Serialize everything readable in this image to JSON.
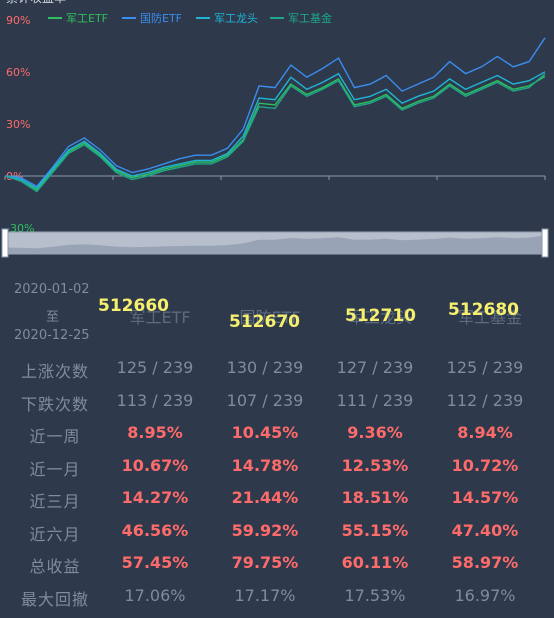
{
  "chart_title": "累计收益率",
  "legend": [
    {
      "name": "军工ETF",
      "color": "#2fbf5e"
    },
    {
      "name": "国防ETF",
      "color": "#3b8cf0"
    },
    {
      "name": "军工龙头",
      "color": "#1fb3d6"
    },
    {
      "name": "军工基金",
      "color": "#1ea58a"
    }
  ],
  "chart_data": {
    "type": "line",
    "x_range": [
      "2020-01-02",
      "2020-12-25"
    ],
    "ylim": [
      -30,
      90
    ],
    "yticks": [
      "90%",
      "60%",
      "30%",
      "0%",
      "-30%"
    ],
    "series": [
      {
        "name": "军工ETF",
        "values": [
          0,
          -2,
          -8,
          3,
          14,
          19,
          12,
          3,
          -1,
          1,
          4,
          6,
          8,
          8,
          12,
          21,
          42,
          41,
          53,
          47,
          51,
          56,
          41,
          43,
          47,
          39,
          43,
          46,
          53,
          47,
          51,
          55,
          50,
          52,
          57.45
        ]
      },
      {
        "name": "国防ETF",
        "values": [
          0,
          -1,
          -6,
          5,
          17,
          22,
          15,
          6,
          2,
          4,
          7,
          10,
          12,
          12,
          16,
          27,
          52,
          51,
          64,
          57,
          62,
          68,
          51,
          53,
          58,
          49,
          53,
          57,
          66,
          59,
          63,
          69,
          63,
          66,
          79.75
        ]
      },
      {
        "name": "军工龙头",
        "values": [
          0,
          -2,
          -7,
          4,
          15,
          20,
          13,
          4,
          0,
          2,
          5,
          7,
          9,
          9,
          13,
          23,
          45,
          44,
          57,
          50,
          54,
          59,
          44,
          46,
          50,
          42,
          46,
          49,
          56,
          50,
          54,
          58,
          53,
          55,
          60.11
        ]
      },
      {
        "name": "军工基金",
        "values": [
          0,
          -3,
          -9,
          2,
          13,
          18,
          11,
          2,
          -2,
          0,
          3,
          5,
          7,
          7,
          11,
          20,
          40,
          39,
          52,
          46,
          50,
          55,
          40,
          42,
          46,
          38,
          42,
          45,
          52,
          46,
          50,
          54,
          49,
          51,
          58.97
        ]
      }
    ]
  },
  "stats": {
    "date_start": "2020-01-02",
    "date_to": "至",
    "date_end": "2020-12-25",
    "funds": [
      {
        "code": "512660",
        "name": "军工ETF"
      },
      {
        "code": "512670",
        "name": "国防ETF"
      },
      {
        "code": "512710",
        "name": "军工龙头"
      },
      {
        "code": "512680",
        "name": "军工基金"
      }
    ],
    "rows": [
      {
        "label": "上涨次数",
        "kind": "plain",
        "values": [
          "125 / 239",
          "130 / 239",
          "127 / 239",
          "125 / 239"
        ]
      },
      {
        "label": "下跌次数",
        "kind": "plain",
        "values": [
          "113 / 239",
          "107 / 239",
          "111 / 239",
          "112 / 239"
        ]
      },
      {
        "label": "近一周",
        "kind": "pos",
        "values": [
          "8.95%",
          "10.45%",
          "9.36%",
          "8.94%"
        ]
      },
      {
        "label": "近一月",
        "kind": "pos",
        "values": [
          "10.67%",
          "14.78%",
          "12.53%",
          "10.72%"
        ]
      },
      {
        "label": "近三月",
        "kind": "pos",
        "values": [
          "14.27%",
          "21.44%",
          "18.51%",
          "14.57%"
        ]
      },
      {
        "label": "近六月",
        "kind": "pos",
        "values": [
          "46.56%",
          "59.92%",
          "55.15%",
          "47.40%"
        ]
      },
      {
        "label": "总收益",
        "kind": "pos",
        "values": [
          "57.45%",
          "79.75%",
          "60.11%",
          "58.97%"
        ]
      },
      {
        "label": "最大回撤",
        "kind": "plain",
        "values": [
          "17.06%",
          "17.17%",
          "17.53%",
          "16.97%"
        ]
      }
    ]
  }
}
